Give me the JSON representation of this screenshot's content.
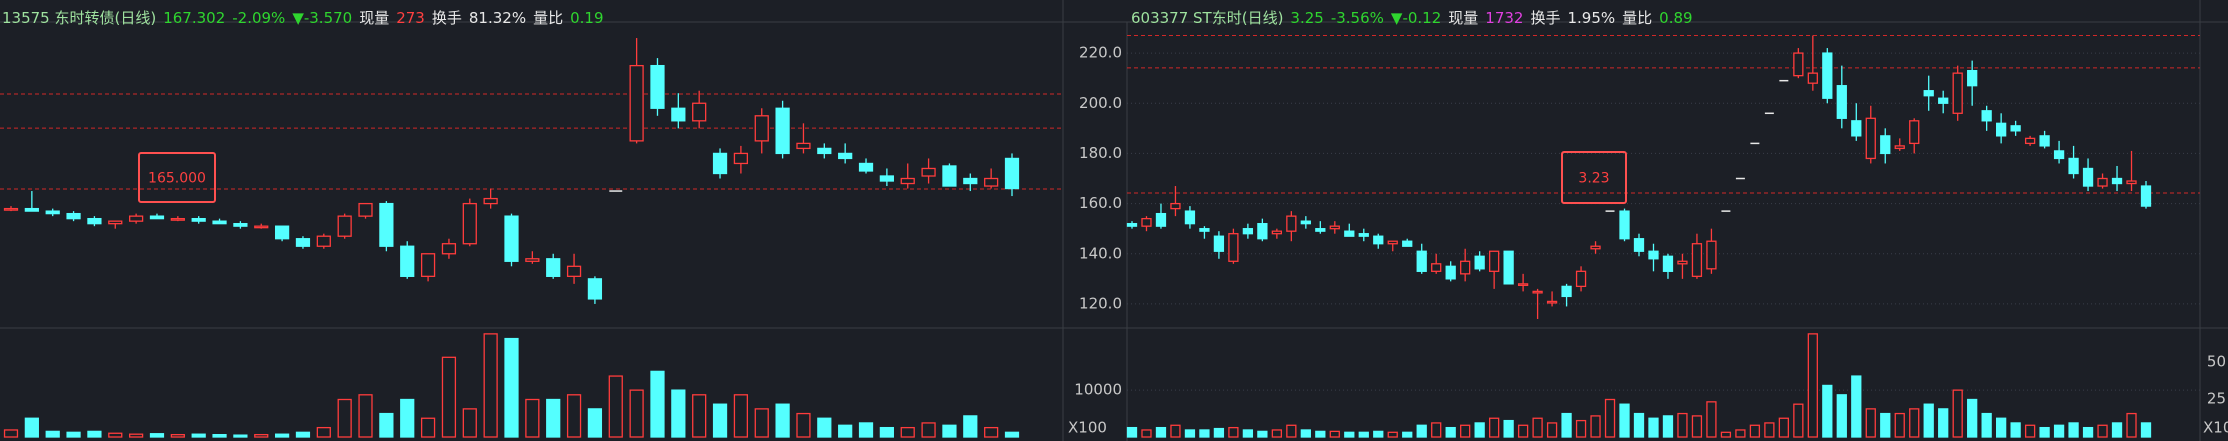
{
  "chart_data": [
    {
      "type": "candlestick",
      "header": {
        "name": "13575 东时转债(日线)",
        "price": 167.302,
        "change_pct": "-2.09%",
        "change": "▼-3.570",
        "now_vol_label": "现量",
        "now_vol": 273,
        "turnover_label": "换手",
        "turnover": "81.32%",
        "vol_ratio_label": "量比",
        "vol_ratio": 0.19
      },
      "marker_label": "165.000",
      "open": [
        158,
        158,
        157,
        156,
        154,
        152,
        153,
        155,
        154,
        154,
        153,
        152,
        151,
        151,
        146,
        143,
        147,
        155,
        160,
        143,
        131,
        140,
        144,
        160,
        155,
        137,
        138,
        131,
        130,
        165,
        185,
        215,
        198,
        193,
        180,
        176,
        185,
        198,
        182,
        182,
        180,
        176,
        171,
        168,
        171,
        175,
        170,
        167,
        178
      ],
      "high": [
        159,
        165,
        158,
        157,
        155,
        153,
        156,
        156,
        155,
        155,
        154,
        153,
        152,
        151,
        147,
        148,
        156,
        160,
        161,
        145,
        140,
        146,
        162,
        166,
        156,
        141,
        140,
        140,
        131,
        165,
        226,
        218,
        204,
        205,
        182,
        183,
        198,
        201,
        192,
        184,
        184,
        178,
        174,
        176,
        178,
        176,
        172,
        174,
        180
      ],
      "low": [
        157,
        157,
        155,
        153,
        151,
        150,
        152,
        154,
        153,
        152,
        152,
        150,
        150,
        145,
        142,
        142,
        146,
        154,
        141,
        130,
        129,
        138,
        143,
        158,
        135,
        136,
        130,
        128,
        120,
        165,
        184,
        195,
        190,
        190,
        170,
        172,
        180,
        178,
        180,
        178,
        176,
        172,
        167,
        166,
        168,
        167,
        165,
        166,
        163
      ],
      "close": [
        158,
        157,
        156,
        154,
        152,
        153,
        155,
        154,
        154,
        153,
        152,
        151,
        151,
        146,
        143,
        147,
        155,
        160,
        143,
        131,
        140,
        144,
        160,
        162,
        137,
        138,
        131,
        135,
        122,
        165,
        215,
        198,
        193,
        200,
        172,
        180,
        195,
        180,
        184,
        180,
        178,
        173,
        169,
        170,
        174,
        167,
        168,
        170,
        166
      ],
      "volume": [
        1500,
        4000,
        1200,
        1000,
        1200,
        800,
        600,
        700,
        500,
        600,
        500,
        400,
        500,
        600,
        1000,
        2000,
        8000,
        9000,
        5000,
        8000,
        4000,
        17000,
        6000,
        22000,
        21000,
        8000,
        8000,
        9000,
        6000,
        13000,
        10000,
        14000,
        10000,
        9000,
        7000,
        9000,
        6000,
        7000,
        5000,
        4000,
        2500,
        3000,
        2000,
        2000,
        3000,
        2500,
        4500,
        2000,
        1000
      ],
      "ylim": [
        112,
        230
      ],
      "levels": [
        203.7,
        190.1,
        165.8
      ],
      "volume_ylim": [
        0,
        22400
      ]
    },
    {
      "type": "candlestick",
      "header": {
        "name": "603377 ST东时(日线)",
        "price": 3.25,
        "change_pct": "-3.56%",
        "change": "▼-0.12",
        "now_vol_label": "现量",
        "now_vol": 1732,
        "turnover_label": "换手",
        "turnover": "1.95%",
        "vol_ratio_label": "量比",
        "vol_ratio": 0.89
      },
      "marker_label": 3.23,
      "open": [
        152,
        151,
        156,
        158,
        157,
        150,
        147,
        137,
        150,
        152,
        148,
        149,
        153,
        150,
        150,
        149,
        148,
        147,
        144,
        145,
        141,
        133,
        135,
        132,
        139,
        133,
        141,
        128,
        125,
        121,
        127,
        127,
        142,
        157,
        157,
        146,
        141,
        139,
        136,
        131,
        134,
        157,
        170,
        184,
        196,
        209,
        211,
        208,
        220,
        207,
        193,
        178,
        187,
        182,
        184,
        205,
        202,
        196,
        213,
        197,
        192,
        191,
        184,
        187,
        181,
        178,
        174,
        167,
        170,
        168,
        167
      ],
      "high": [
        153,
        155,
        160,
        167,
        159,
        151,
        149,
        150,
        152,
        154,
        150,
        157,
        155,
        153,
        153,
        152,
        150,
        148,
        145,
        146,
        144,
        140,
        137,
        142,
        141,
        141,
        141,
        132,
        126,
        125,
        128,
        135,
        145,
        157,
        158,
        148,
        144,
        140,
        140,
        148,
        150,
        157,
        170,
        184,
        196,
        209,
        222,
        227,
        222,
        215,
        200,
        199,
        190,
        186,
        194,
        211,
        205,
        215,
        217,
        199,
        196,
        193,
        187,
        189,
        185,
        183,
        178,
        172,
        175,
        181,
        169
      ],
      "low": [
        150,
        149,
        150,
        155,
        150,
        146,
        138,
        136,
        146,
        145,
        146,
        145,
        150,
        148,
        148,
        147,
        145,
        142,
        141,
        143,
        132,
        132,
        129,
        129,
        133,
        126,
        128,
        125,
        114,
        119,
        119,
        125,
        140,
        157,
        145,
        139,
        133,
        130,
        130,
        130,
        132,
        157,
        170,
        184,
        196,
        209,
        210,
        205,
        200,
        190,
        185,
        176,
        176,
        181,
        180,
        197,
        196,
        193,
        199,
        189,
        184,
        187,
        183,
        182,
        176,
        170,
        165,
        166,
        165,
        165,
        158
      ],
      "close": [
        151,
        154,
        151,
        160,
        152,
        149,
        141,
        148,
        148,
        146,
        149,
        155,
        152,
        149,
        151,
        147,
        147,
        144,
        145,
        143,
        133,
        136,
        130,
        137,
        134,
        141,
        128,
        128,
        125,
        121,
        123,
        133,
        143,
        157,
        146,
        141,
        138,
        133,
        137,
        144,
        145,
        157,
        170,
        184,
        196,
        209,
        220,
        212,
        202,
        194,
        187,
        194,
        180,
        183,
        193,
        203,
        200,
        212,
        207,
        193,
        187,
        189,
        186,
        183,
        178,
        172,
        167,
        170,
        168,
        169,
        159
      ],
      "volume": [
        2000,
        1500,
        2000,
        2500,
        1500,
        1500,
        1800,
        2000,
        1500,
        1200,
        1500,
        2500,
        1500,
        1200,
        1200,
        1000,
        1000,
        1200,
        1000,
        1000,
        2500,
        3000,
        2000,
        2500,
        3000,
        4000,
        3500,
        2500,
        4000,
        3000,
        5000,
        3500,
        4500,
        8000,
        7000,
        5000,
        4000,
        4500,
        5000,
        4500,
        7500,
        1000,
        1500,
        2500,
        3000,
        4000,
        7000,
        22000,
        11000,
        9000,
        13000,
        6000,
        5000,
        5000,
        6000,
        7000,
        6000,
        10000,
        8000,
        5000,
        4000,
        3000,
        2500,
        2000,
        2500,
        3000,
        2000,
        2500,
        3000,
        5000,
        3000
      ],
      "ylim": [
        112,
        230
      ],
      "yticks": [
        {
          "value": 220,
          "label": "220.0"
        },
        {
          "value": 200,
          "label": "200.0"
        },
        {
          "value": 180,
          "label": "180.0"
        },
        {
          "value": 160,
          "label": "160.0"
        },
        {
          "value": 140,
          "label": "140.0"
        },
        {
          "value": 120,
          "label": "120.0"
        }
      ],
      "levels": [
        227,
        214.1,
        164.2
      ],
      "volume_ylim": [
        0,
        22400
      ],
      "volume_yticks": [
        10000
      ],
      "volume_unit": "X100"
    }
  ],
  "side_panel": {
    "volume_ticks": [
      50,
      25
    ],
    "unit": "X10"
  }
}
